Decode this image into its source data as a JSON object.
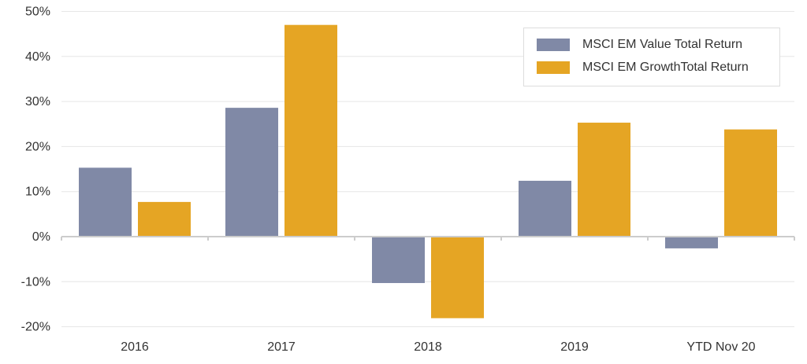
{
  "chart_data": {
    "type": "bar",
    "categories": [
      "2016",
      "2017",
      "2018",
      "2019",
      "YTD Nov 20"
    ],
    "series": [
      {
        "name": "MSCI EM Value Total Return",
        "color": "#8089a6",
        "values": [
          15.3,
          28.6,
          -10.3,
          12.4,
          -2.6
        ]
      },
      {
        "name": "MSCI EM GrowthTotal Return",
        "color": "#e5a524",
        "values": [
          7.7,
          47.0,
          -18.1,
          25.3,
          23.8
        ]
      }
    ],
    "y_ticks": [
      "-20%",
      "-10%",
      "0%",
      "10%",
      "20%",
      "30%",
      "40%",
      "50%"
    ],
    "ylim": [
      -20,
      50
    ],
    "grid": true,
    "legend_position": "top-right",
    "title": "",
    "xlabel": "",
    "ylabel": ""
  }
}
